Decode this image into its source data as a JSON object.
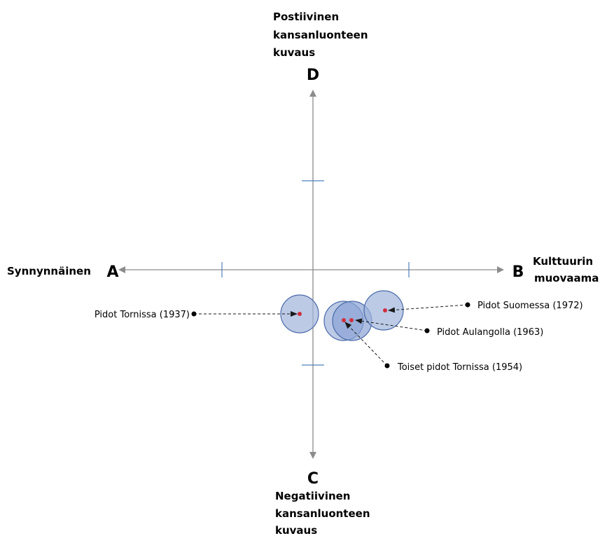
{
  "poles": {
    "A": {
      "letter": "A",
      "label": [
        "Synnynnäinen"
      ]
    },
    "B": {
      "letter": "B",
      "label": [
        "Kulttuurin",
        "muovaama"
      ]
    },
    "C": {
      "letter": "C",
      "label": [
        "Negatiivinen",
        "kansanluonteen",
        "kuvaus"
      ]
    },
    "D": {
      "letter": "D",
      "label": [
        "Postiivinen",
        "kansanluonteen",
        "kuvaus"
      ]
    }
  },
  "events": [
    {
      "id": "tornissa-1937",
      "label": "Pidot Tornissa (1937)"
    },
    {
      "id": "suomessa-1972",
      "label": "Pidot Suomessa (1972)"
    },
    {
      "id": "aulangolla-1963",
      "label": "Pidot Aulangolla (1963)"
    },
    {
      "id": "toiset-tornissa-1954",
      "label": "Toiset pidot Tornissa (1954)"
    }
  ],
  "colors": {
    "axis": "#8c8c8c",
    "tick": "#4f81bd",
    "circle_fill": "#9fb3dc",
    "circle_stroke": "#4a6aa8",
    "dot": "#d0303f",
    "callout": "#000000"
  }
}
